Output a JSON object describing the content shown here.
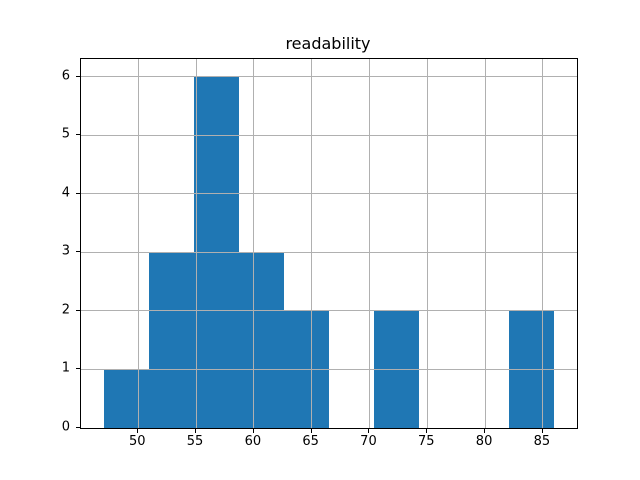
{
  "chart_data": {
    "type": "bar",
    "subtype": "histogram",
    "title": "readability",
    "xlabel": "",
    "ylabel": "",
    "bin_edges": [
      47.0,
      50.9,
      54.8,
      58.7,
      62.6,
      66.5,
      70.4,
      74.3,
      78.2,
      82.1,
      86.0
    ],
    "counts": [
      1,
      3,
      6,
      3,
      2,
      0,
      2,
      0,
      0,
      2
    ],
    "xticks": [
      50,
      55,
      60,
      65,
      70,
      75,
      80,
      85
    ],
    "yticks": [
      0,
      1,
      2,
      3,
      4,
      5,
      6
    ],
    "xlim": [
      45.05,
      87.95
    ],
    "ylim": [
      0,
      6.3
    ],
    "grid": true,
    "grid_above_bars": true,
    "legend": "none",
    "colors": {
      "bar": "#1f77b4",
      "grid": "#b0b0b0",
      "spine": "#000000",
      "background": "#ffffff",
      "text": "#000000"
    }
  }
}
